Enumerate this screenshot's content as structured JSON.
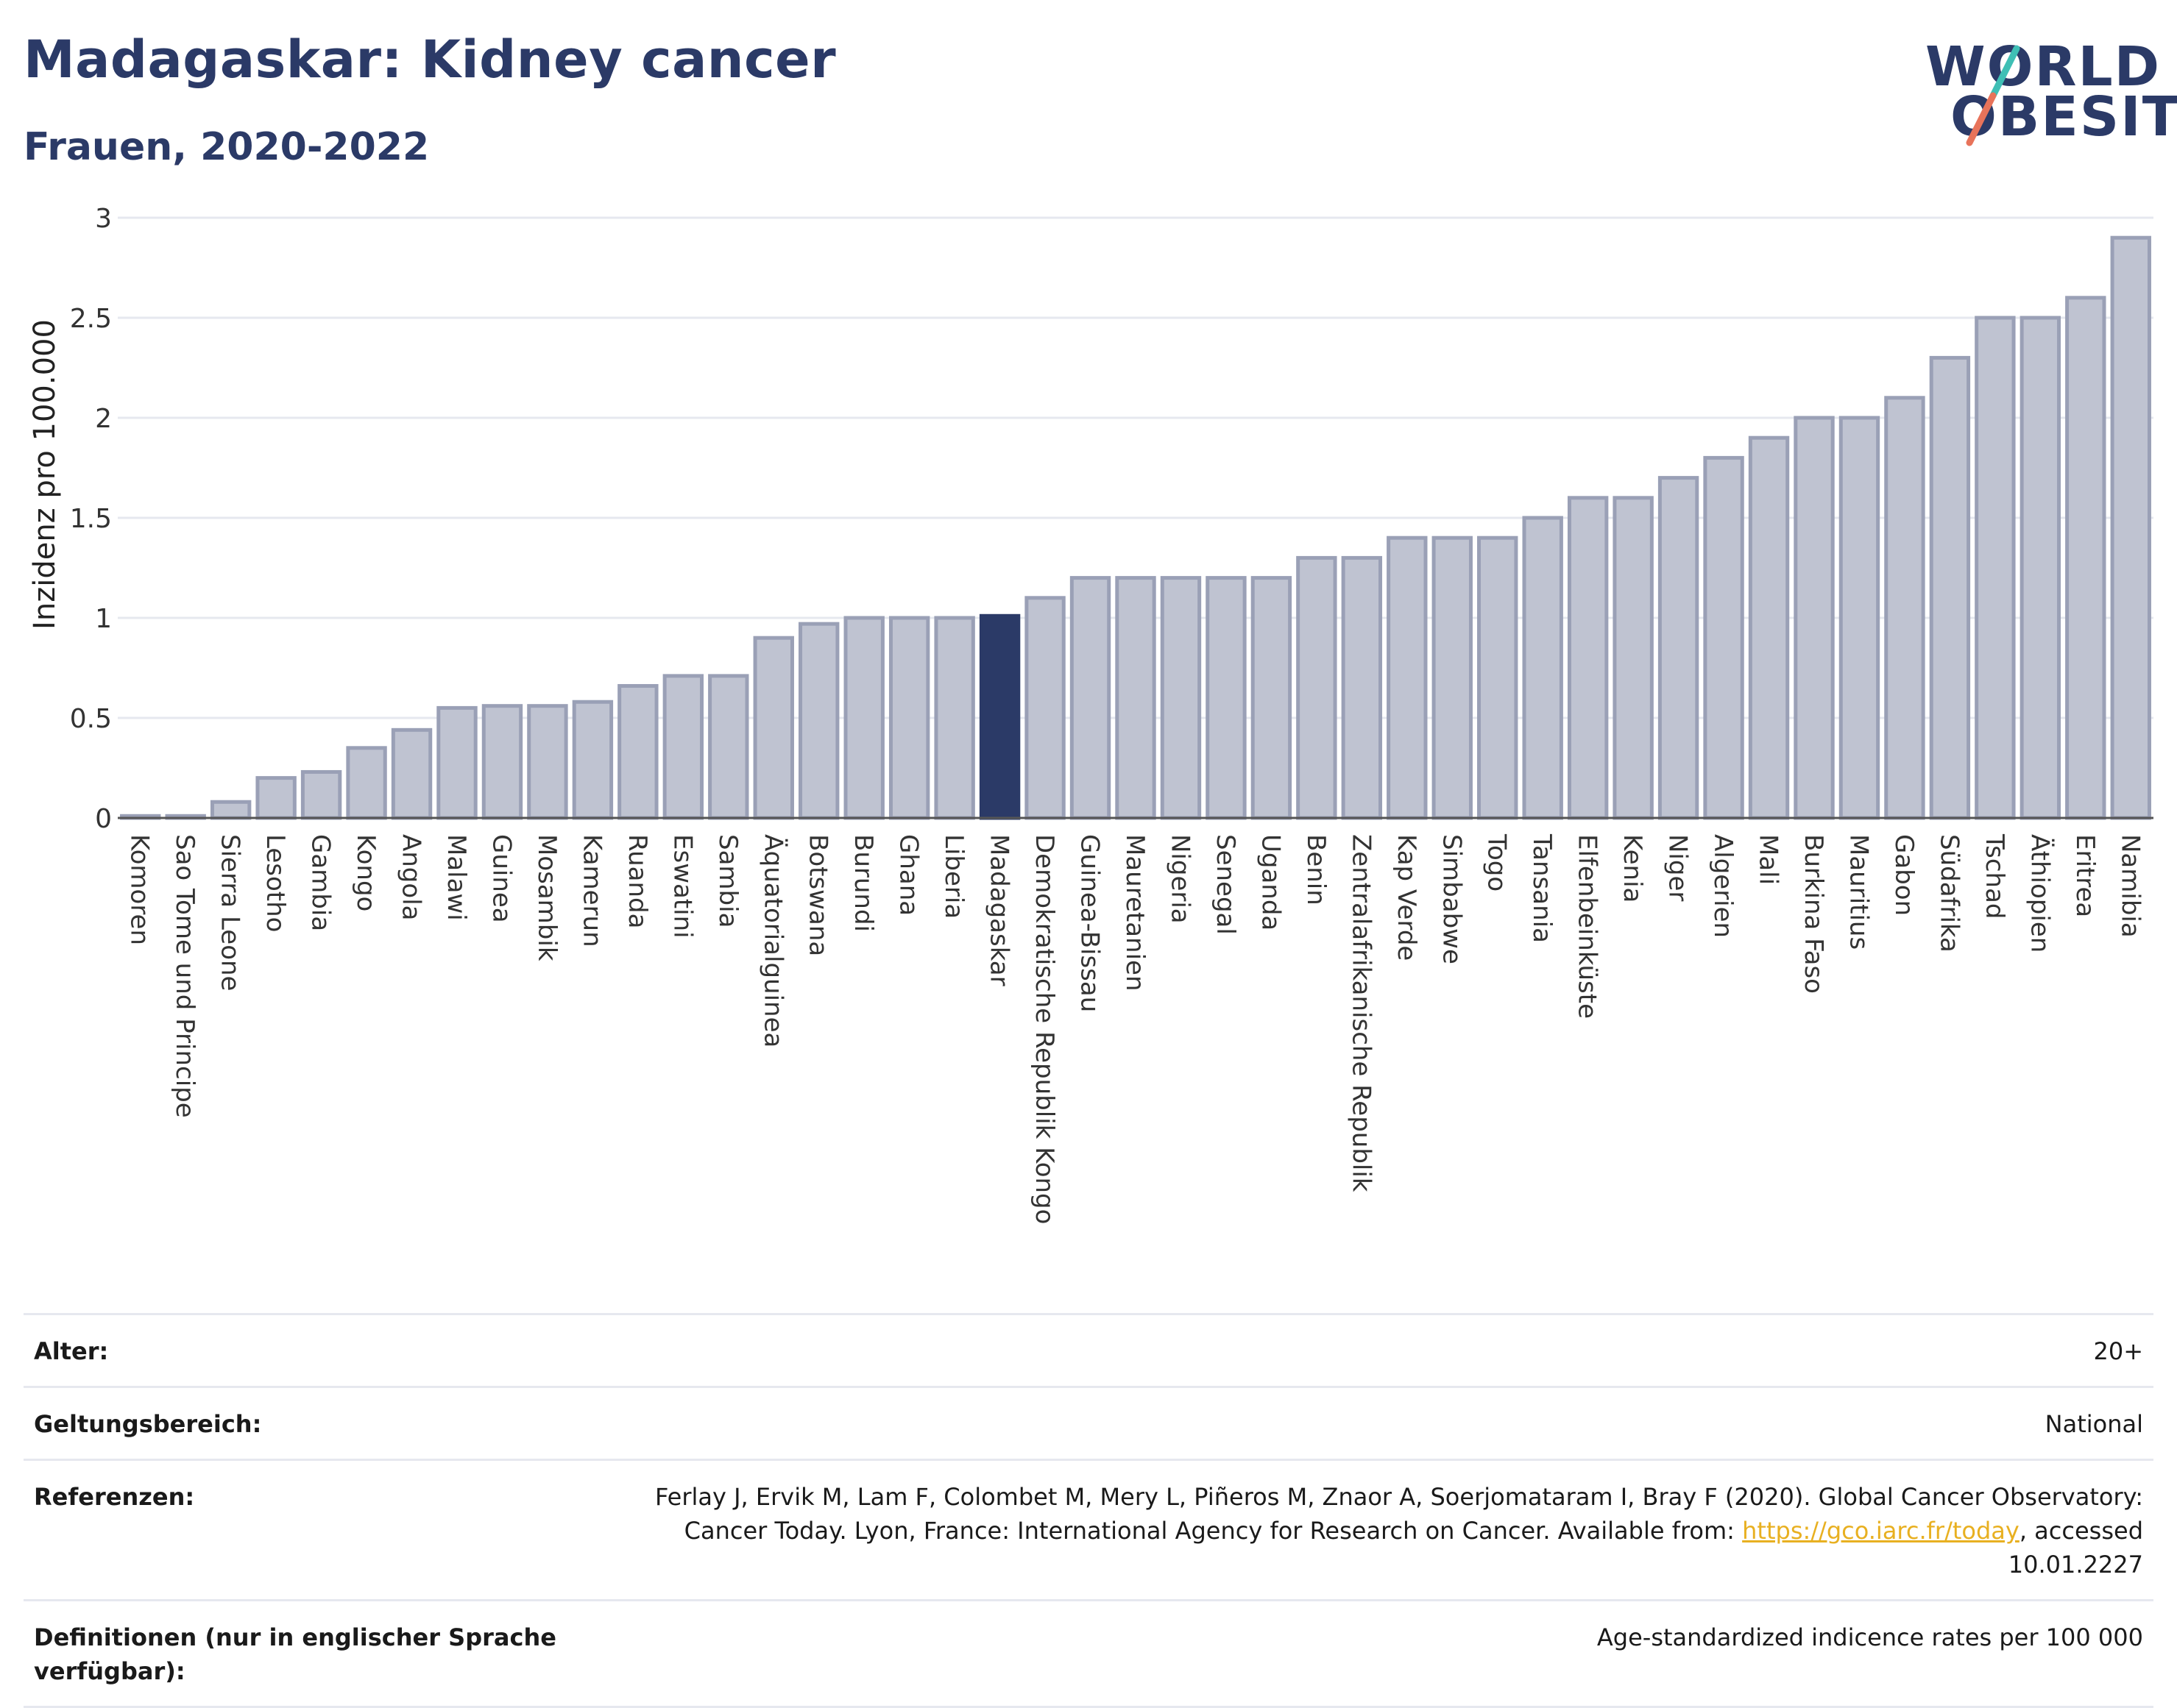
{
  "header": {
    "title": "Madagaskar: Kidney cancer",
    "subtitle": "Frauen, 2020-2022"
  },
  "logo": {
    "line1": "WORLD",
    "line2": "OBESITY",
    "slash_colors": [
      "#3fbfb5",
      "#e8735a"
    ]
  },
  "colors": {
    "bar_fill": "#bfc3d1",
    "bar_stroke": "#9aa0b6",
    "highlight_fill": "#2b3a67",
    "gridline": "#e6e8ef",
    "axis": "#555555"
  },
  "chart_data": {
    "type": "bar",
    "title": "Madagaskar: Kidney cancer",
    "subtitle": "Frauen, 2020-2022",
    "xlabel": "",
    "ylabel": "Inzidenz pro 100.000",
    "ylim": [
      0,
      3
    ],
    "yticks": [
      0,
      0.5,
      1,
      1.5,
      2,
      2.5,
      3
    ],
    "ytick_labels": [
      "0",
      "0.5",
      "1",
      "1.5",
      "2",
      "2.5",
      "3"
    ],
    "grid": true,
    "highlight": "Madagaskar",
    "categories": [
      "Komoren",
      "Sao Tome und Principe",
      "Sierra Leone",
      "Lesotho",
      "Gambia",
      "Kongo",
      "Angola",
      "Malawi",
      "Guinea",
      "Mosambik",
      "Kamerun",
      "Ruanda",
      "Eswatini",
      "Sambia",
      "Äquatorialguinea",
      "Botswana",
      "Burundi",
      "Ghana",
      "Liberia",
      "Madagaskar",
      "Demokratische Republik Kongo",
      "Guinea-Bissau",
      "Mauretanien",
      "Nigeria",
      "Senegal",
      "Uganda",
      "Benin",
      "Zentralafrikanische Republik",
      "Kap Verde",
      "Simbabwe",
      "Togo",
      "Tansania",
      "Elfenbeinküste",
      "Kenia",
      "Niger",
      "Algerien",
      "Mali",
      "Burkina Faso",
      "Mauritius",
      "Gabon",
      "Südafrika",
      "Tschad",
      "Äthiopien",
      "Eritrea",
      "Namibia"
    ],
    "values": [
      0.01,
      0.01,
      0.08,
      0.2,
      0.23,
      0.35,
      0.44,
      0.55,
      0.56,
      0.56,
      0.58,
      0.66,
      0.71,
      0.71,
      0.9,
      0.97,
      1.0,
      1.0,
      1.0,
      1.01,
      1.1,
      1.2,
      1.2,
      1.2,
      1.2,
      1.2,
      1.3,
      1.3,
      1.4,
      1.4,
      1.4,
      1.5,
      1.6,
      1.6,
      1.7,
      1.8,
      1.9,
      2.0,
      2.0,
      2.1,
      2.3,
      2.5,
      2.5,
      2.6,
      2.9
    ]
  },
  "meta": {
    "rows": [
      {
        "label": "Alter:",
        "value": "20+"
      },
      {
        "label": "Geltungsbereich:",
        "value": "National"
      }
    ],
    "references": {
      "label": "Referenzen:",
      "text_before": "Ferlay J, Ervik M, Lam F, Colombet M, Mery L, Piñeros M, Znaor A, Soerjomataram I, Bray F (2020). Global Cancer Observatory: Cancer Today. Lyon, France: International Agency for Research on Cancer. Available from: ",
      "link": "https://gco.iarc.fr/today",
      "text_after": ", accessed 10.01.2227"
    },
    "definitions": {
      "label": "Definitionen (nur in englischer Sprache verfügbar):",
      "value": "Age-standardized indicence rates per 100 000"
    }
  }
}
